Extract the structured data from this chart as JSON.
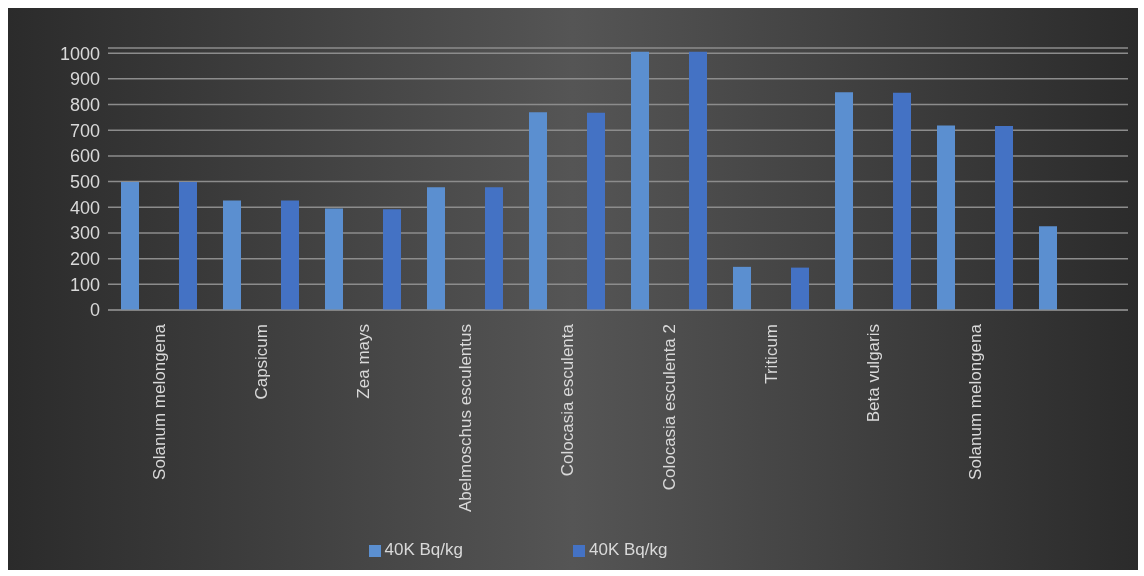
{
  "chart_data": {
    "type": "bar",
    "categories": [
      "Solanum melongena",
      "Capsicum",
      "Zea mays",
      "Abelmoschus esculentus",
      "Colocasia esculenta",
      "Colocasia esculenta 2",
      "Triticum",
      "Beta vulgaris",
      "Solanum melongena",
      null
    ],
    "series": [
      {
        "name": "40K Bq/kg",
        "color": "#5b8fd0",
        "values": [
          498,
          426,
          395,
          478,
          770,
          1005,
          168,
          848,
          718,
          326
        ]
      },
      {
        "name": "40K Bq/kg",
        "color": "#4472c4",
        "values": [
          498,
          426,
          392,
          478,
          768,
          1005,
          165,
          846,
          716,
          null
        ]
      }
    ],
    "ylim": [
      0,
      1020
    ],
    "yticks": [
      0,
      100,
      200,
      300,
      400,
      500,
      600,
      700,
      800,
      900,
      1000
    ],
    "grid": "y",
    "legend": "bottom"
  }
}
